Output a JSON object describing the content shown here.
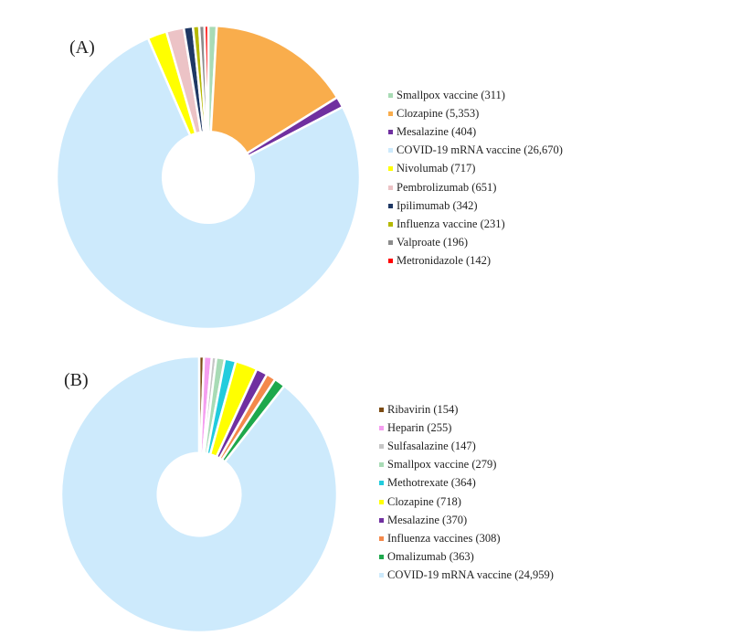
{
  "chart_data": [
    {
      "type": "pie",
      "panel_label": "(A)",
      "start_angle_deg": 0,
      "hole_ratio": 0.3,
      "categories": [
        "Smallpox vaccine",
        "Clozapine",
        "Mesalazine",
        "COVID-19 mRNA vaccine",
        "Nivolumab",
        "Pembrolizumab",
        "Ipilimumab",
        "Influenza vaccine",
        "Valproate",
        "Metronidazole"
      ],
      "values": [
        311,
        5353,
        404,
        26670,
        717,
        651,
        342,
        231,
        196,
        142
      ],
      "legend": [
        "Smallpox vaccine (311)",
        "Clozapine (5,353)",
        "Mesalazine (404)",
        "COVID-19 mRNA vaccine (26,670)",
        "Nivolumab (717)",
        "Pembrolizumab (651)",
        "Ipilimumab (342)",
        "Influenza vaccine (231)",
        "Valproate (196)",
        "Metronidazole (142)"
      ],
      "colors": [
        "#a8dbb5",
        "#f9ad4c",
        "#7030a0",
        "#cdeafc",
        "#ffff00",
        "#ecc3c6",
        "#1f3864",
        "#b5b800",
        "#8c8c8c",
        "#ff0000"
      ],
      "legend_placement": "right"
    },
    {
      "type": "pie",
      "panel_label": "(B)",
      "start_angle_deg": 0,
      "hole_ratio": 0.3,
      "categories": [
        "Ribavirin",
        "Heparin",
        "Sulfasalazine",
        "Smallpox vaccine",
        "Methotrexate",
        "Clozapine",
        "Mesalazine",
        "Influenza vaccines",
        "Omalizumab",
        "COVID-19 mRNA vaccine"
      ],
      "values": [
        154,
        255,
        147,
        279,
        364,
        718,
        370,
        308,
        363,
        24959
      ],
      "legend": [
        "Ribavirin (154)",
        "Heparin (255)",
        "Sulfasalazine (147)",
        "Smallpox vaccine (279)",
        "Methotrexate (364)",
        "Clozapine (718)",
        "Mesalazine (370)",
        "Influenza vaccines (308)",
        "Omalizumab (363)",
        "COVID-19 mRNA vaccine (24,959)"
      ],
      "colors": [
        "#7b4a12",
        "#f59ef0",
        "#c6c6c6",
        "#a8dbb5",
        "#22ccdd",
        "#ffff00",
        "#7030a0",
        "#f4894b",
        "#1ea84c",
        "#cdeafc"
      ],
      "legend_placement": "right"
    }
  ]
}
